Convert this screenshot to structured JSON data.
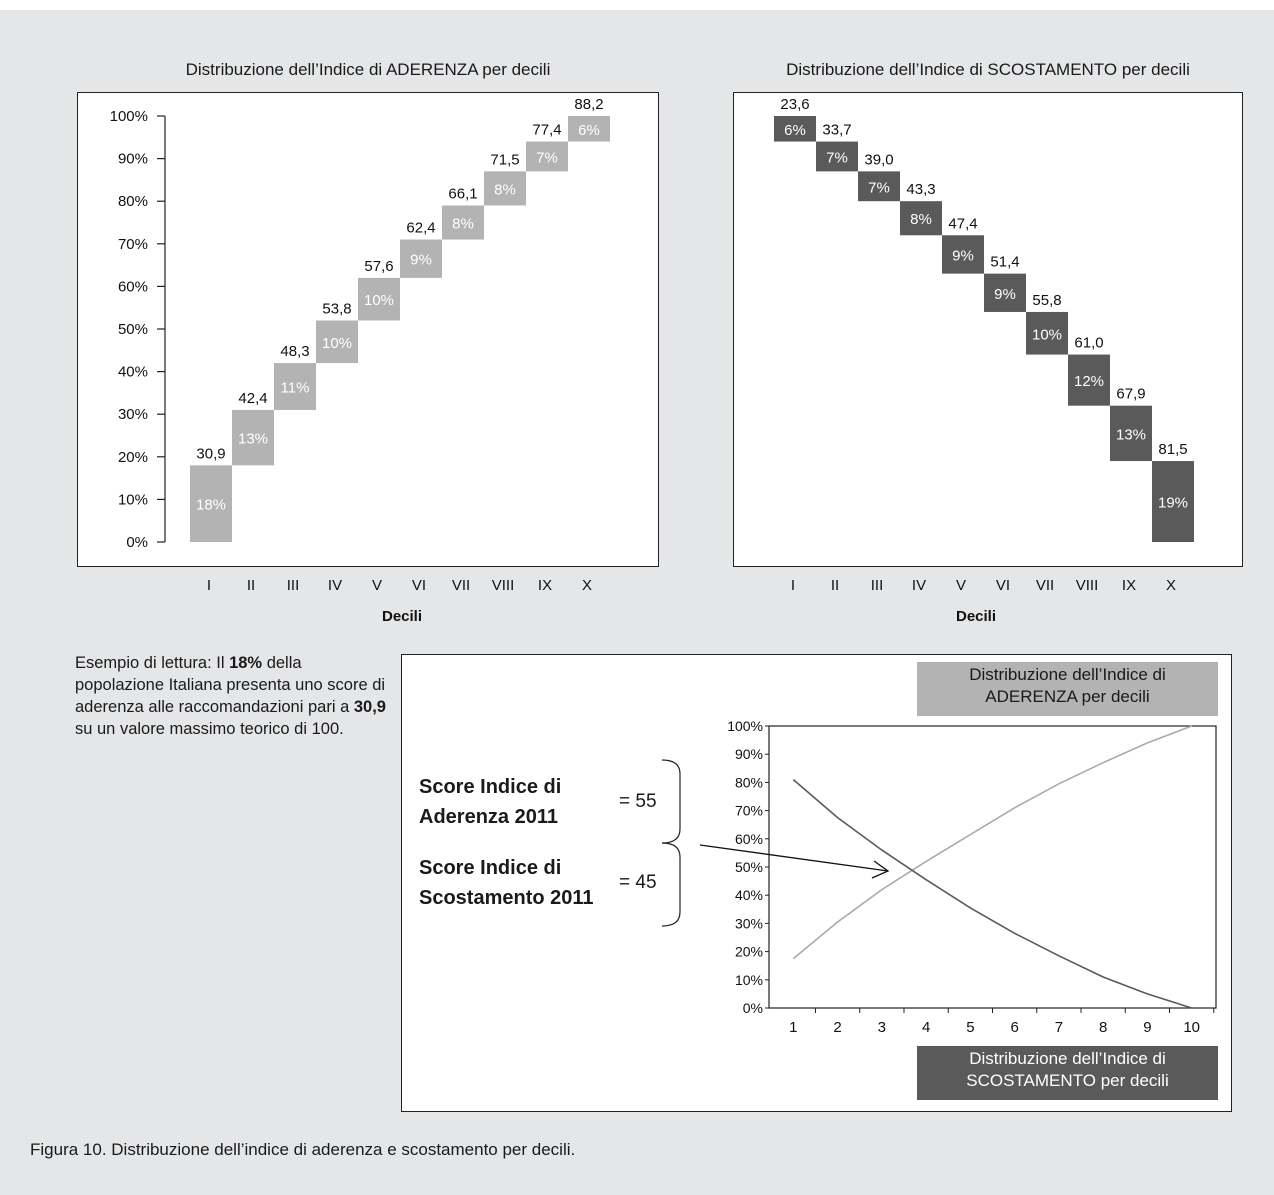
{
  "chart_data": [
    {
      "type": "bar",
      "title": "Distribuzione dell’Indice di ADERENZA per decili",
      "xlabel": "Decili",
      "categories": [
        "I",
        "II",
        "III",
        "IV",
        "V",
        "VI",
        "VII",
        "VIII",
        "IX",
        "X"
      ],
      "y_ticks": [
        "0%",
        "10%",
        "20%",
        "30%",
        "40%",
        "50%",
        "60%",
        "70%",
        "80%",
        "90%",
        "100%"
      ],
      "ylim": [
        0,
        100
      ],
      "score_labels": [
        "30,9",
        "42,4",
        "48,3",
        "53,8",
        "57,6",
        "62,4",
        "66,1",
        "71,5",
        "77,4",
        "88,2"
      ],
      "percent_labels": [
        "18%",
        "13%",
        "11%",
        "10%",
        "10%",
        "9%",
        "8%",
        "8%",
        "7%",
        "6%"
      ],
      "values": [
        18,
        13,
        11,
        10,
        10,
        9,
        8,
        8,
        7,
        6
      ],
      "color": "#b3b3b3"
    },
    {
      "type": "bar",
      "title": "Distribuzione dell’Indice di SCOSTAMENTO per decili",
      "xlabel": "Decili",
      "categories": [
        "I",
        "II",
        "III",
        "IV",
        "V",
        "VI",
        "VII",
        "VIII",
        "IX",
        "X"
      ],
      "ylim": [
        0,
        100
      ],
      "score_labels": [
        "23,6",
        "33,7",
        "39,0",
        "43,3",
        "47,4",
        "51,4",
        "55,8",
        "61,0",
        "67,9",
        "81,5"
      ],
      "percent_labels": [
        "6%",
        "7%",
        "7%",
        "8%",
        "9%",
        "9%",
        "10%",
        "12%",
        "13%",
        "19%"
      ],
      "values": [
        6,
        7,
        7,
        8,
        9,
        9,
        10,
        12,
        13,
        19
      ],
      "color": "#5a5a5a"
    },
    {
      "type": "line",
      "x": [
        1,
        2,
        3,
        4,
        5,
        6,
        7,
        8,
        9,
        10
      ],
      "y_ticks": [
        "0%",
        "10%",
        "20%",
        "30%",
        "40%",
        "50%",
        "60%",
        "70%",
        "80%",
        "90%",
        "100%"
      ],
      "x_ticks": [
        "1",
        "2",
        "3",
        "4",
        "5",
        "6",
        "7",
        "8",
        "9",
        "10"
      ],
      "ylim": [
        0,
        100
      ],
      "xlim": [
        0.45,
        10.55
      ],
      "series": [
        {
          "name": "Distribuzione dell’Indice di ADERENZA per decili",
          "values": [
            17.5,
            30.5,
            42,
            52,
            61.5,
            71,
            79.5,
            87,
            94,
            100
          ],
          "color": "#aaaaaa"
        },
        {
          "name": "Distribuzione dell’Indice di SCOSTAMENTO per decili",
          "values": [
            81,
            67.5,
            56,
            45.5,
            35.5,
            26.5,
            18.5,
            11,
            5,
            0
          ],
          "color": "#5a5a5a"
        }
      ]
    }
  ],
  "annotation": {
    "example_prefix": "Esempio di lettura: Il ",
    "example_pct": "18%",
    "example_mid1": " della popolazione Italiana presenta uno score di aderenza alle raccomandazioni pari a ",
    "example_score": "30,9",
    "example_suffix": " su un valore massimo teorico di 100.",
    "score_aderenza_line1": "Score Indice di",
    "score_aderenza_line2": "Aderenza 2011",
    "score_aderenza_value": "= 55",
    "score_scostamento_line1": "Score Indice di",
    "score_scostamento_line2": "Scostamento 2011",
    "score_scostamento_value": "= 45",
    "legend_aderenza_line1": "Distribuzione dell’Indice di",
    "legend_aderenza_line2": "ADERENZA per decili",
    "legend_scostamento_line1": "Distribuzione dell’Indice di",
    "legend_scostamento_line2": "SCOSTAMENTO per decili"
  },
  "caption": "Figura 10. Distribuzione dell’indice di aderenza e scostamento per decili."
}
